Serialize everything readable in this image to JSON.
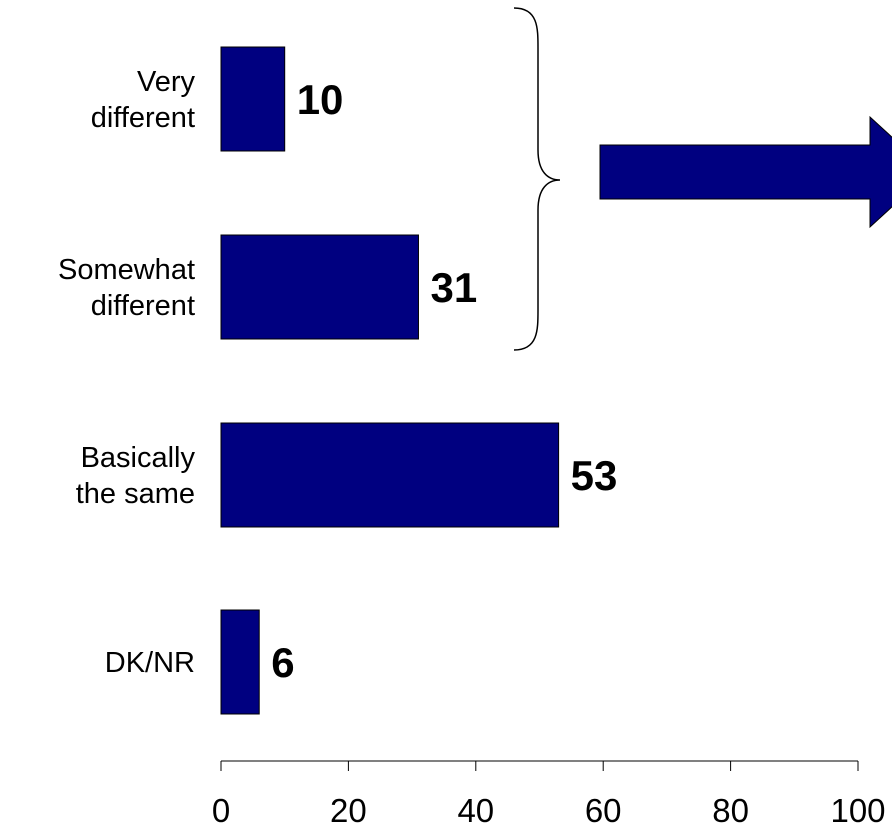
{
  "chart_data": {
    "type": "bar",
    "orientation": "horizontal",
    "title": "",
    "xlabel": "",
    "ylabel": "",
    "categories": [
      [
        "Very",
        "different"
      ],
      [
        "Somewhat",
        "different"
      ],
      [
        "Basically",
        "the same"
      ],
      [
        "DK/NR"
      ]
    ],
    "values": [
      10,
      31,
      53,
      6
    ],
    "value_labels": [
      "10",
      "31",
      "53",
      "6"
    ],
    "xlim": [
      0,
      100
    ],
    "xticks": [
      0,
      20,
      40,
      60,
      80,
      100
    ],
    "xtick_labels": [
      "0",
      "20",
      "40",
      "60",
      "80",
      "100"
    ],
    "grid": false,
    "legend": "none",
    "bar_color": "#000080",
    "bar_edge_color": "#000000",
    "annotations": [
      {
        "type": "brace",
        "spans_categories": [
          0,
          1
        ],
        "side": "right"
      },
      {
        "type": "arrow",
        "direction": "right",
        "from": "brace",
        "color": "#000080"
      }
    ]
  }
}
